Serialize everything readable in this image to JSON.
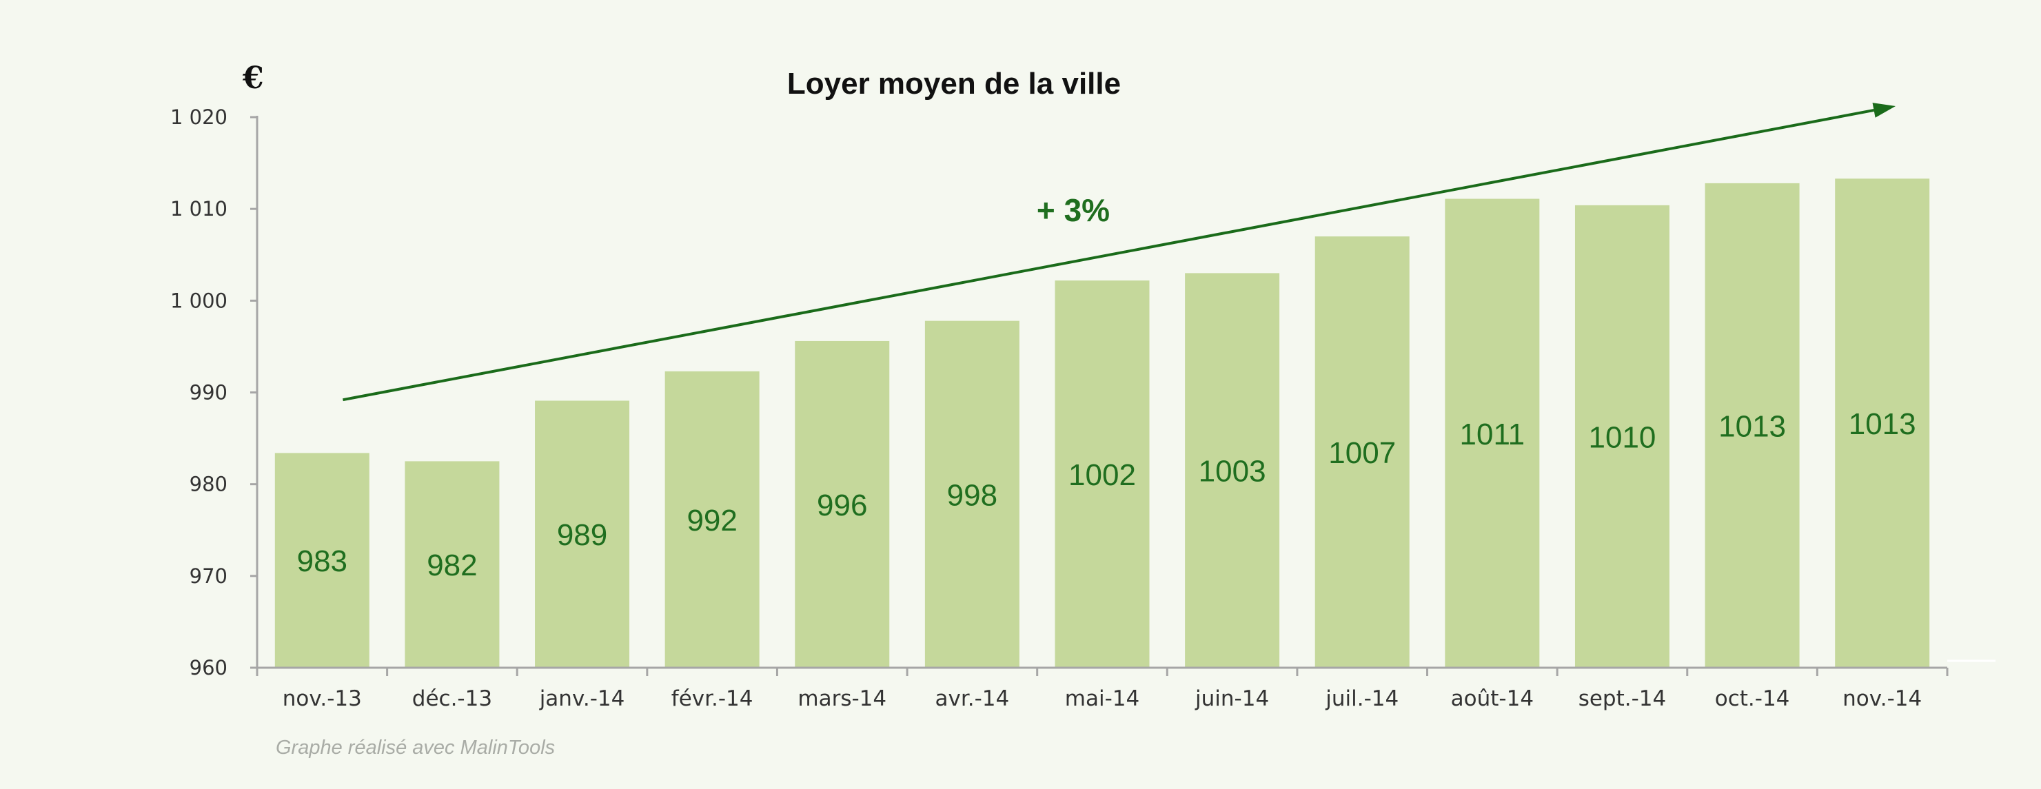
{
  "chart_data": {
    "type": "bar",
    "title": "Loyer moyen de la ville",
    "unit": "€",
    "categories": [
      "nov.-13",
      "déc.-13",
      "janv.-14",
      "févr.-14",
      "mars-14",
      "avr.-14",
      "mai-14",
      "juin-14",
      "juil.-14",
      "août-14",
      "sept.-14",
      "oct.-14",
      "nov.-14"
    ],
    "values": [
      983.4,
      982.5,
      989.1,
      992.3,
      995.6,
      997.8,
      1002.2,
      1003.0,
      1007.0,
      1011.1,
      1010.4,
      1012.8,
      1013.3
    ],
    "value_labels": [
      "983",
      "982",
      "989",
      "992",
      "996",
      "998",
      "1002",
      "1003",
      "1007",
      "1011",
      "1010",
      "1013",
      "1013"
    ],
    "yticks": [
      960,
      970,
      980,
      990,
      1000,
      1010,
      1020
    ],
    "ytick_labels": [
      "960",
      "970",
      "980",
      "990",
      "1 000",
      "1 010",
      "1 020"
    ],
    "ylim": [
      960,
      1020
    ],
    "grid": false,
    "legend": "none",
    "trend": {
      "label": "+ 3%",
      "from_value": 989.2,
      "to_value": 1021.2
    },
    "credit": "Graphe  réalisé avec MalinTools",
    "colors": {
      "bar": "#c5d89b",
      "label": "#1f6e1f",
      "trend": "#1a6b1a",
      "axis": "#a6a6a6",
      "background": "#f5f8f0"
    }
  }
}
